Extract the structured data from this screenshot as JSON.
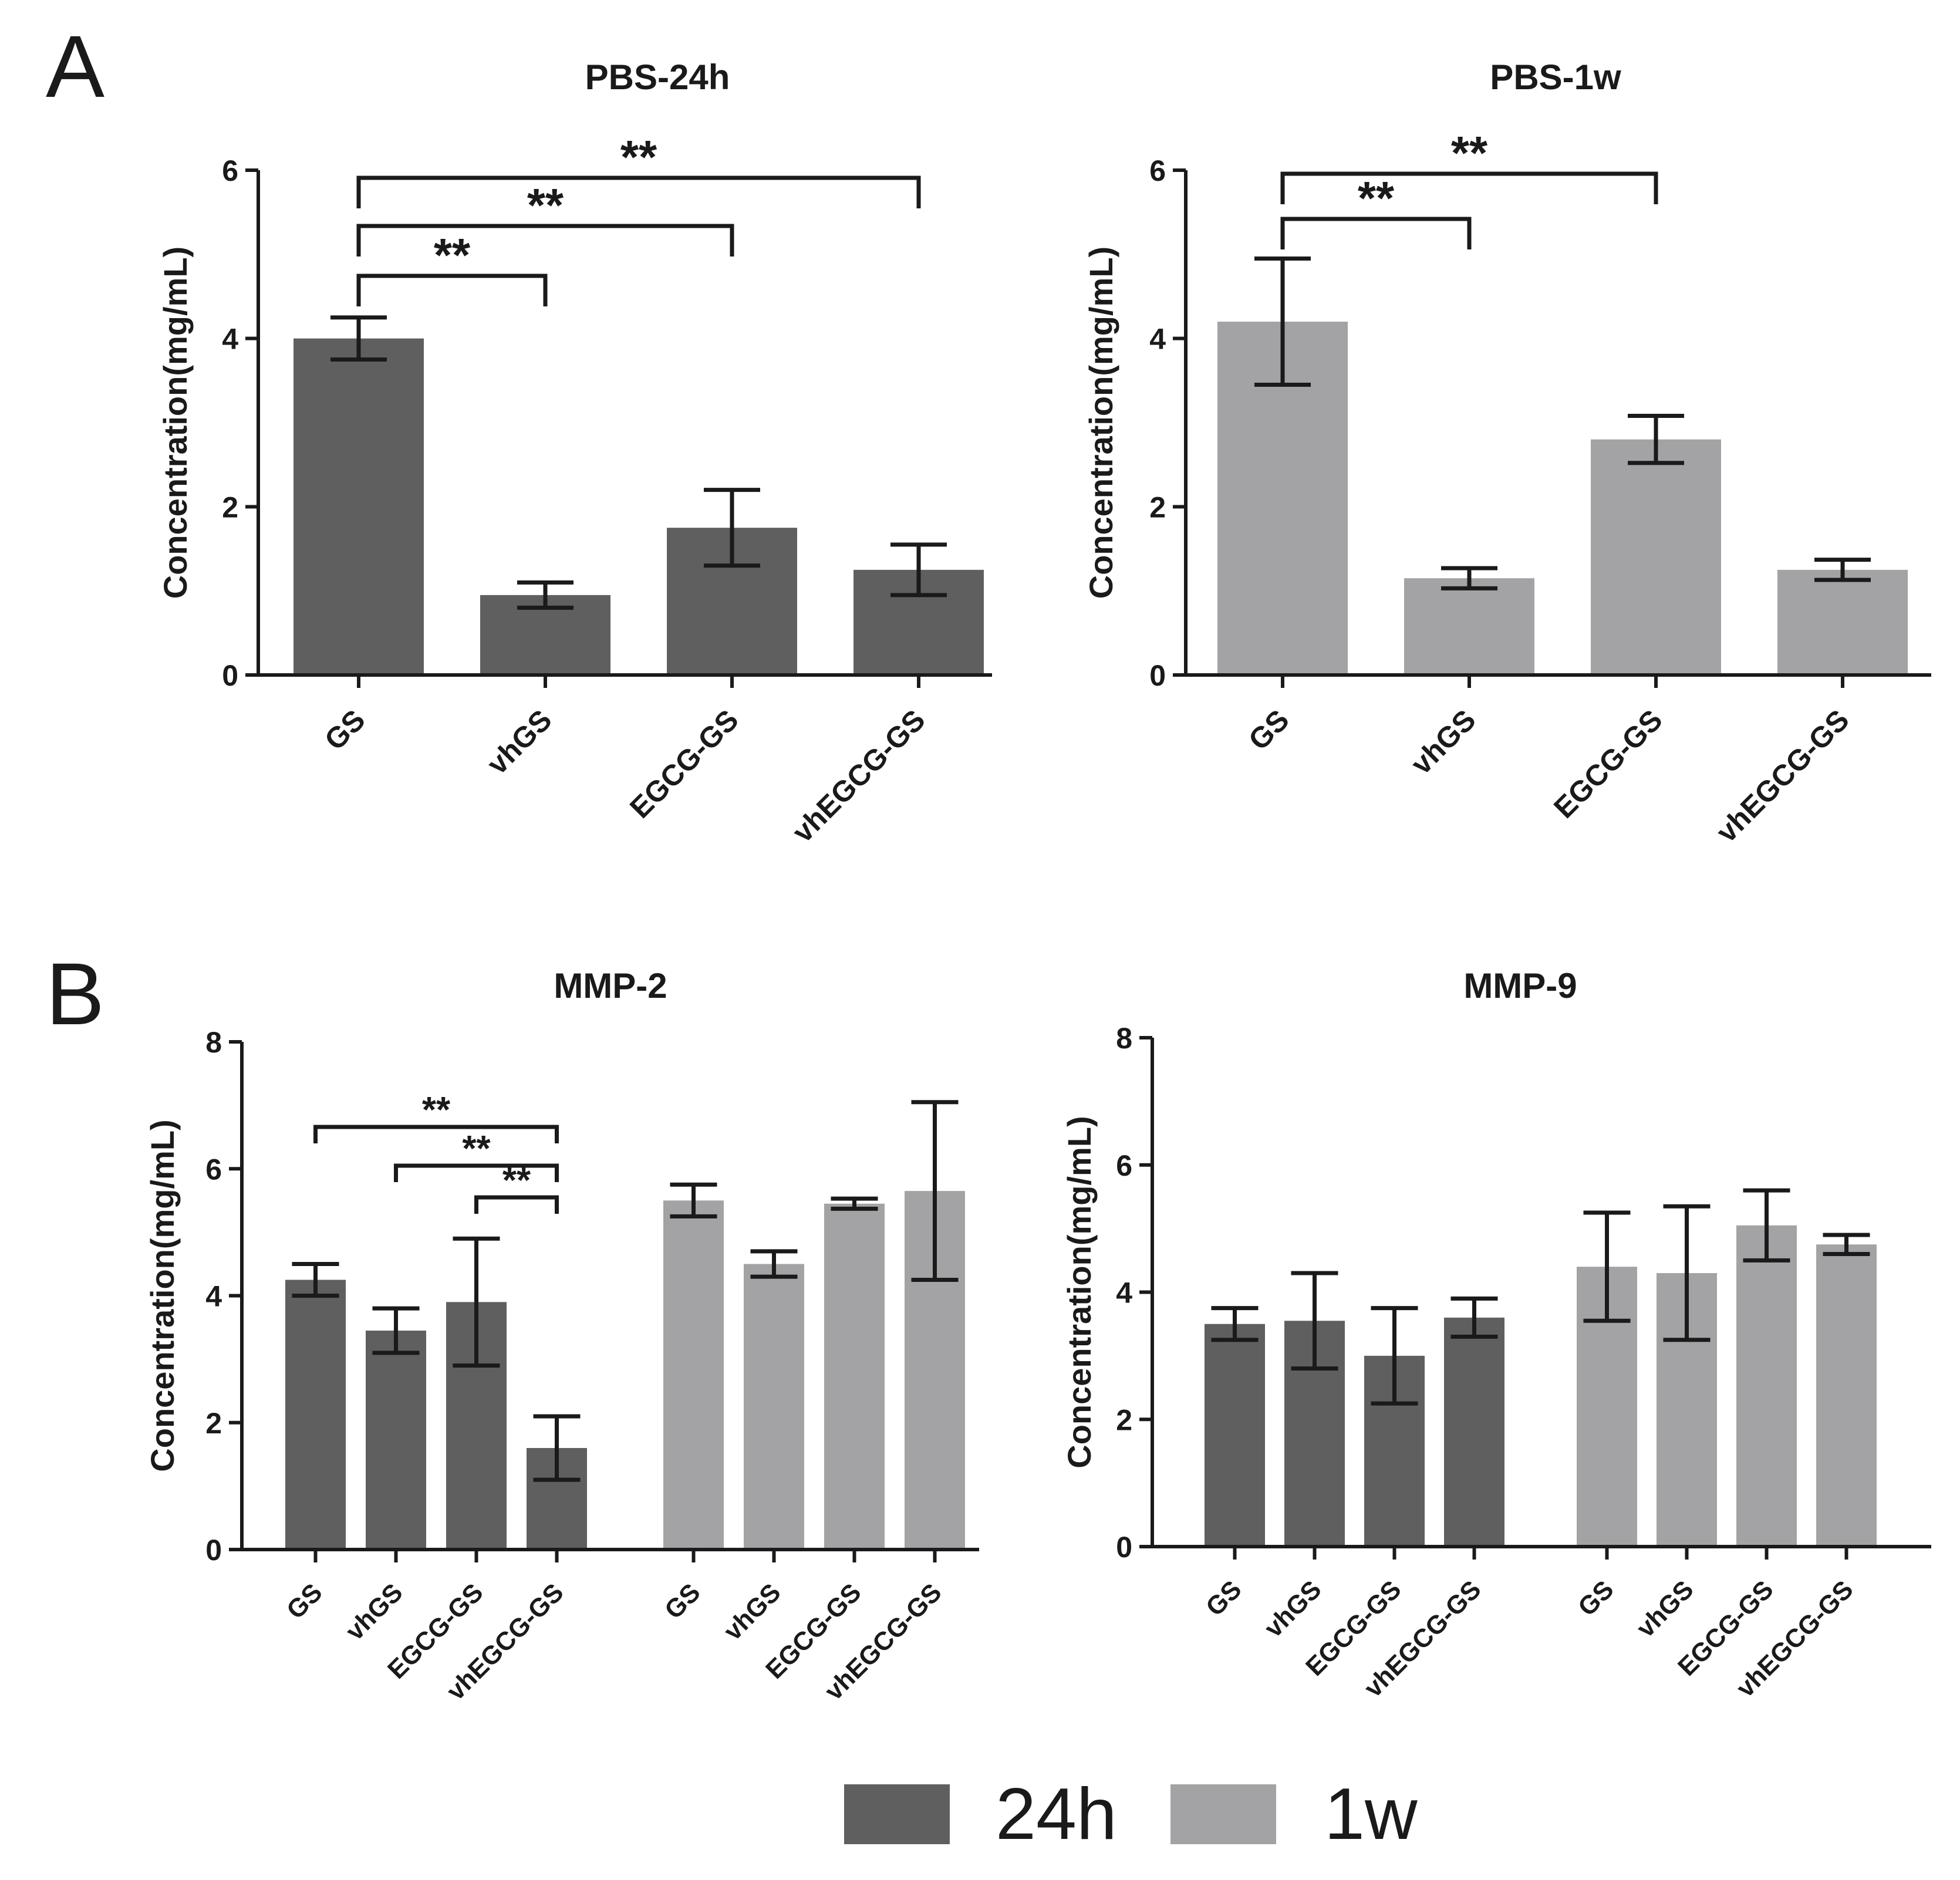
{
  "colors": {
    "24h": "#5f5f5f",
    "1w": "#a3a3a5",
    "ink": "#1a1a1a"
  },
  "panels": {
    "A": "A",
    "B": "B"
  },
  "legend": [
    {
      "label": "24h",
      "color": "#5f5f5f"
    },
    {
      "label": "1w",
      "color": "#a3a3a5"
    }
  ],
  "chart_data": [
    {
      "id": "pbs24h",
      "type": "bar",
      "title": "PBS-24h",
      "ylabel": "Concentration(mg/mL)",
      "ylim": [
        0,
        6
      ],
      "yticks": [
        0,
        2,
        4,
        6
      ],
      "categories": [
        "GS",
        "vhGS",
        "EGCG-GS",
        "vhEGCG-GS"
      ],
      "values": [
        4.0,
        0.95,
        1.75,
        1.25
      ],
      "errors": [
        0.25,
        0.15,
        0.45,
        0.3
      ],
      "series_key": "24h",
      "significance": [
        {
          "from": 0,
          "to": 1,
          "label": "**"
        },
        {
          "from": 0,
          "to": 2,
          "label": "**"
        },
        {
          "from": 0,
          "to": 3,
          "label": "**"
        }
      ]
    },
    {
      "id": "pbs1w",
      "type": "bar",
      "title": "PBS-1w",
      "ylabel": "Concentration(mg/mL)",
      "ylim": [
        0,
        6
      ],
      "yticks": [
        0,
        2,
        4,
        6
      ],
      "categories": [
        "GS",
        "vhGS",
        "EGCG-GS",
        "vhEGCG-GS"
      ],
      "values": [
        4.2,
        1.15,
        2.8,
        1.25
      ],
      "errors": [
        0.75,
        0.12,
        0.28,
        0.12
      ],
      "series_key": "1w",
      "significance": [
        {
          "from": 0,
          "to": 1,
          "label": "**"
        },
        {
          "from": 0,
          "to": 2,
          "label": "**"
        }
      ]
    },
    {
      "id": "mmp2",
      "type": "bar",
      "title": "MMP-2",
      "ylabel": "Concentration(mg/mL)",
      "ylim": [
        0,
        8
      ],
      "yticks": [
        0,
        2,
        4,
        6,
        8
      ],
      "categories": [
        "GS",
        "vhGS",
        "EGCG-GS",
        "vhEGCG-GS"
      ],
      "series": [
        {
          "name": "24h",
          "values": [
            4.25,
            3.45,
            3.9,
            1.6
          ],
          "errors": [
            0.25,
            0.35,
            1.0,
            0.5
          ]
        },
        {
          "name": "1w",
          "values": [
            5.5,
            4.5,
            5.45,
            5.65
          ],
          "errors": [
            0.25,
            0.2,
            0.08,
            1.4
          ]
        }
      ],
      "significance": [
        {
          "from": 0,
          "to": 3,
          "label": "**"
        },
        {
          "from": 1,
          "to": 3,
          "label": "**"
        },
        {
          "from": 2,
          "to": 3,
          "label": "**"
        }
      ]
    },
    {
      "id": "mmp9",
      "type": "bar",
      "title": "MMP-9",
      "ylabel": "Concentration(mg/mL)",
      "ylim": [
        0,
        8
      ],
      "yticks": [
        0,
        2,
        4,
        6,
        8
      ],
      "categories": [
        "GS",
        "vhGS",
        "EGCG-GS",
        "vhEGCG-GS"
      ],
      "series": [
        {
          "name": "24h",
          "values": [
            3.5,
            3.55,
            3.0,
            3.6
          ],
          "errors": [
            0.25,
            0.75,
            0.75,
            0.3
          ]
        },
        {
          "name": "1w",
          "values": [
            4.4,
            4.3,
            5.05,
            4.75
          ],
          "errors": [
            0.85,
            1.05,
            0.55,
            0.15
          ]
        }
      ],
      "significance": []
    }
  ]
}
